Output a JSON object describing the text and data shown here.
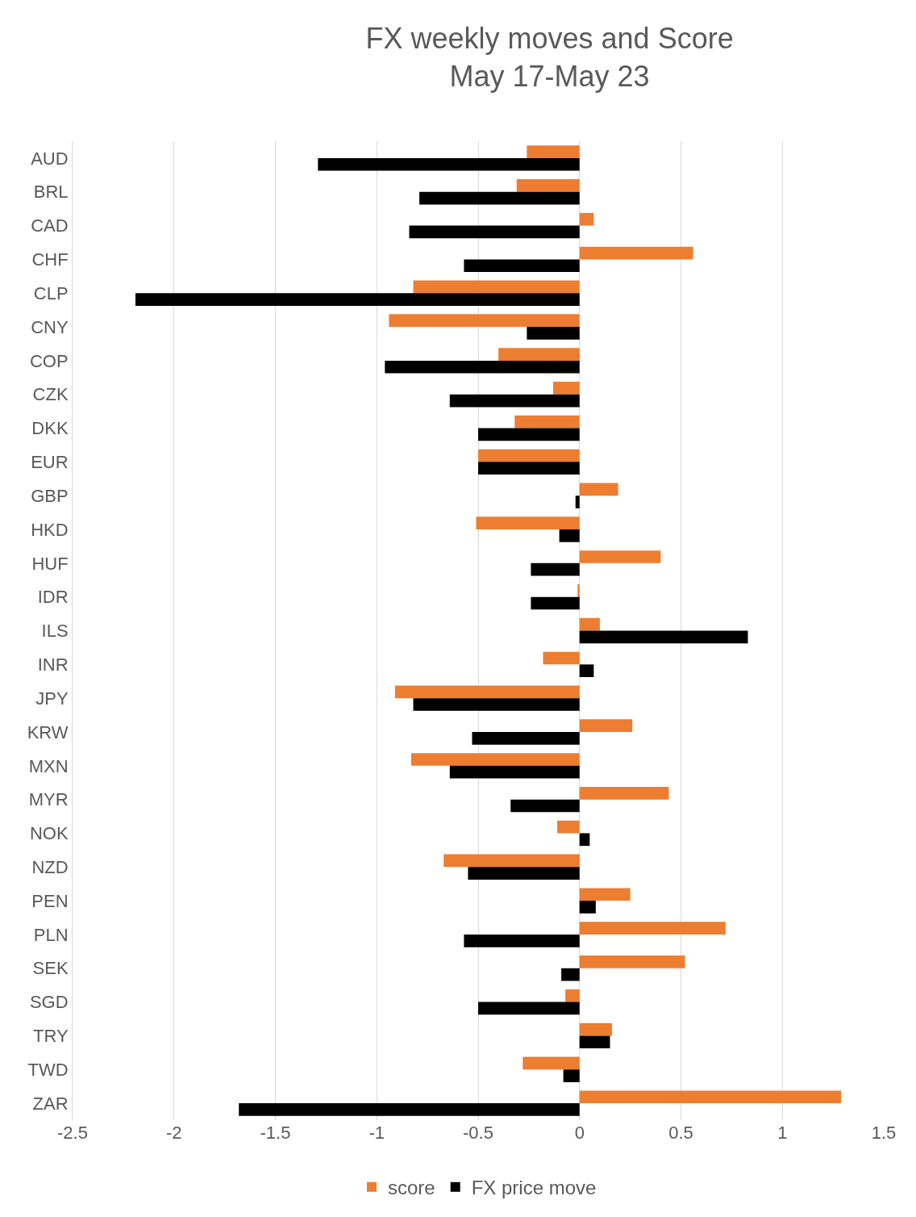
{
  "chart_data": {
    "type": "bar",
    "orientation": "horizontal",
    "title": "FX weekly moves and Score",
    "subtitle": "May 17-May 23",
    "categories": [
      "AUD",
      "BRL",
      "CAD",
      "CHF",
      "CLP",
      "CNY",
      "COP",
      "CZK",
      "DKK",
      "EUR",
      "GBP",
      "HKD",
      "HUF",
      "IDR",
      "ILS",
      "INR",
      "JPY",
      "KRW",
      "MXN",
      "MYR",
      "NOK",
      "NZD",
      "PEN",
      "PLN",
      "SEK",
      "SGD",
      "TRY",
      "TWD",
      "ZAR"
    ],
    "series": [
      {
        "name": "score",
        "color": "#ed7d31",
        "values": [
          -0.26,
          -0.31,
          0.07,
          0.56,
          -0.82,
          -0.94,
          -0.4,
          -0.13,
          -0.32,
          -0.5,
          0.19,
          -0.51,
          0.4,
          -0.01,
          0.1,
          -0.18,
          -0.91,
          0.26,
          -0.83,
          0.44,
          -0.11,
          -0.67,
          0.25,
          0.72,
          0.52,
          -0.07,
          0.16,
          -0.28,
          1.29
        ]
      },
      {
        "name": "FX price move",
        "color": "#000000",
        "values": [
          -1.29,
          -0.79,
          -0.84,
          -0.57,
          -2.19,
          -0.26,
          -0.96,
          -0.64,
          -0.5,
          -0.5,
          -0.02,
          -0.1,
          -0.24,
          -0.24,
          0.83,
          0.07,
          -0.82,
          -0.53,
          -0.64,
          -0.34,
          0.05,
          -0.55,
          0.08,
          -0.57,
          -0.09,
          -0.5,
          0.15,
          -0.08,
          -1.68
        ]
      }
    ],
    "xlim": [
      -2.5,
      1.5
    ],
    "xticks": [
      -2.5,
      -2,
      -1.5,
      -1,
      -0.5,
      0,
      0.5,
      1,
      1.5
    ],
    "grid": "x",
    "legend": "bottom"
  }
}
